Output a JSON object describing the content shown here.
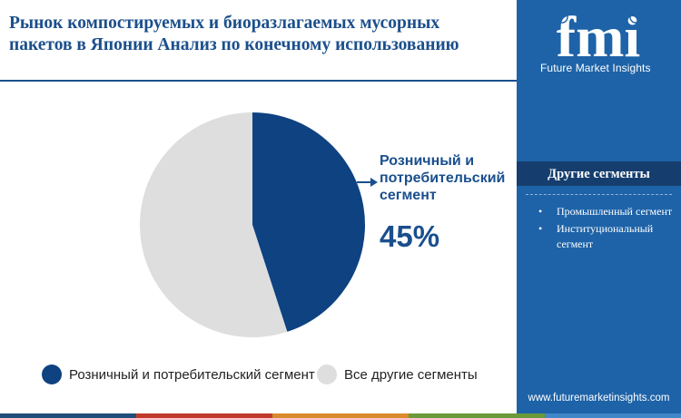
{
  "header": {
    "title": "Рынок компостируемых и биоразлагаемых мусорных пакетов в Японии Анализ по конечному использованию"
  },
  "brand": {
    "logo_text": "fmi",
    "name": "Future Market Insights",
    "url": "www.futuremarketinsights.com"
  },
  "sidebar": {
    "heading": "Другие сегменты",
    "items": [
      {
        "label": "Промышленный сегмент"
      },
      {
        "label": "Институциональный сегмент"
      }
    ]
  },
  "callout": {
    "label": "Розничный и потребительский сегмент",
    "value": "45%"
  },
  "colors": {
    "primary": "#0e4281",
    "secondary": "#dedede",
    "panel": "#1e63a8",
    "bar": [
      "#1f4e7a",
      "#c0392b",
      "#d98a2a",
      "#6a9a3a",
      "#3f87c6"
    ]
  },
  "chart_data": {
    "type": "pie",
    "title": "",
    "slices": [
      {
        "name": "Розничный и потребительский сегмент",
        "value": 45,
        "color": "#0e4281"
      },
      {
        "name": "Все другие сегменты",
        "value": 55,
        "color": "#dedede"
      }
    ]
  }
}
